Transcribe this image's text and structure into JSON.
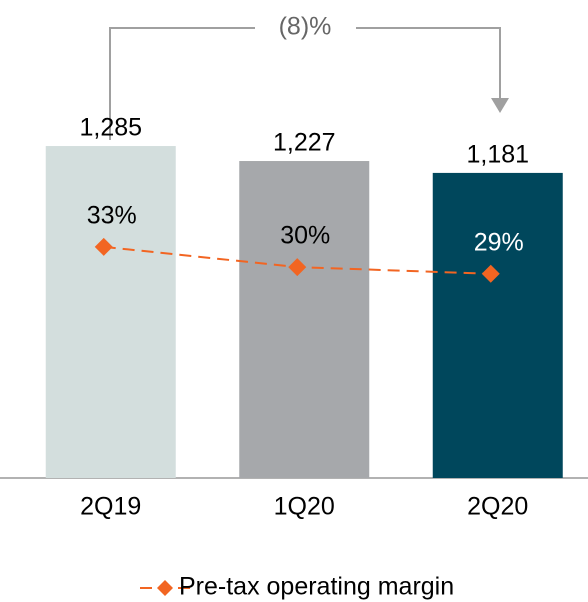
{
  "chart_data": {
    "type": "bar",
    "categories": [
      "2Q19",
      "1Q20",
      "2Q20"
    ],
    "series": [
      {
        "type": "bar",
        "values": [
          1285,
          1227,
          1181
        ],
        "value_labels": [
          "1,285",
          "1,227",
          "1,181"
        ],
        "colors": [
          "#d3dedd",
          "#a6a8ab",
          "#00475c"
        ]
      },
      {
        "type": "line",
        "name": "Pre-tax operating margin",
        "axis": "y2",
        "color": "#f26522",
        "values": [
          33,
          30,
          29
        ],
        "value_labels": [
          "33%",
          "30%",
          "29%"
        ]
      }
    ],
    "ylim": [
      0,
      1800
    ],
    "y2lim": [
      -1.3,
      67.7
    ],
    "annotation": "(8)%"
  }
}
